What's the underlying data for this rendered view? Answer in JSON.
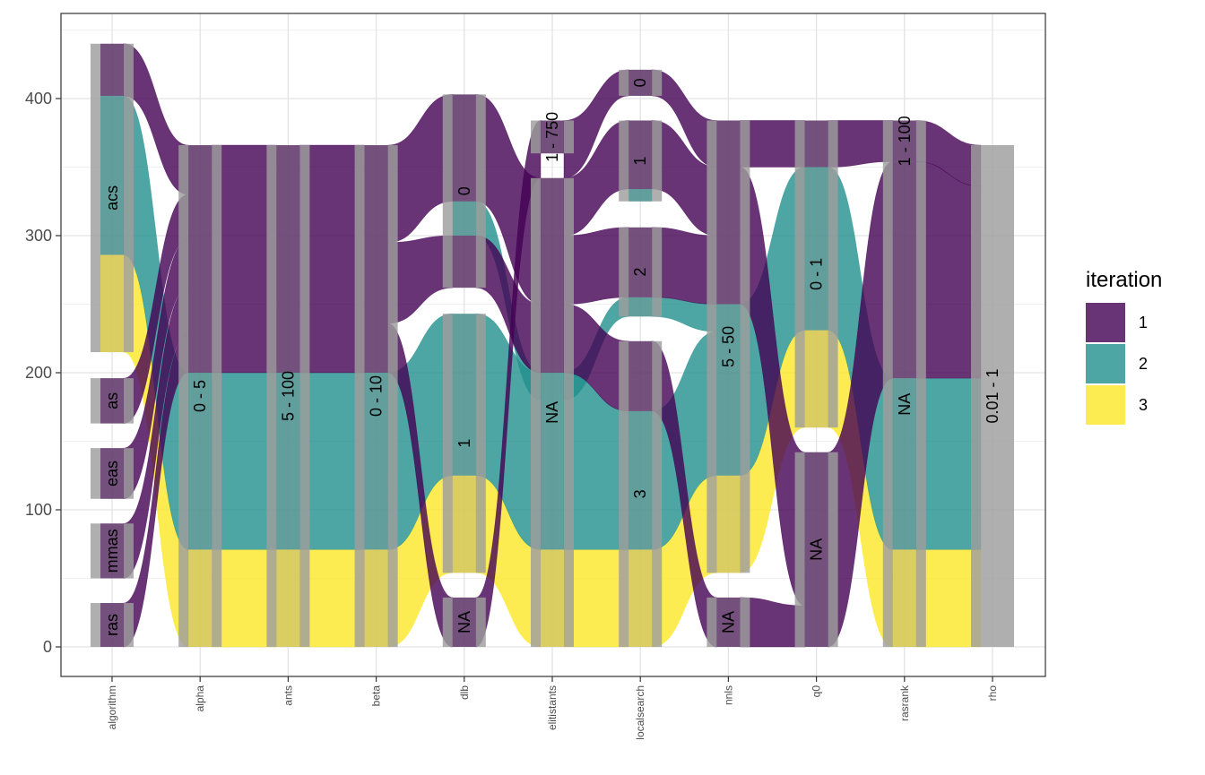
{
  "chart_data": {
    "type": "alluvial",
    "title": "",
    "xlabel": "",
    "ylabel": "",
    "ylim": [
      -22,
      442
    ],
    "y_ticks": [
      0,
      100,
      200,
      300,
      400
    ],
    "grid": true,
    "legend_position": "right",
    "legend_title": "iteration",
    "categories": [
      "algorithm",
      "alpha",
      "ants",
      "beta",
      "dlb",
      "elitistants",
      "localsearch",
      "nnls",
      "q0",
      "rasrank",
      "rho"
    ],
    "series": [
      {
        "name": "1",
        "color": "#440154"
      },
      {
        "name": "2",
        "color": "#21908C"
      },
      {
        "name": "3",
        "color": "#FDE725"
      }
    ],
    "axes": [
      {
        "name": "algorithm",
        "strata": [
          {
            "label": "ras",
            "bottom": 0,
            "top": 32
          },
          {
            "label": "mmas",
            "bottom": 50,
            "top": 90
          },
          {
            "label": "eas",
            "bottom": 108,
            "top": 145
          },
          {
            "label": "as",
            "bottom": 163,
            "top": 196
          },
          {
            "label": "acs",
            "bottom": 215,
            "top": 440
          }
        ]
      },
      {
        "name": "alpha",
        "strata": [
          {
            "label": "0 - 5",
            "bottom": 0,
            "top": 366
          }
        ]
      },
      {
        "name": "ants",
        "strata": [
          {
            "label": "5 - 100",
            "bottom": 0,
            "top": 366
          }
        ]
      },
      {
        "name": "beta",
        "strata": [
          {
            "label": "0 - 10",
            "bottom": 0,
            "top": 366
          }
        ]
      },
      {
        "name": "dlb",
        "strata": [
          {
            "label": "NA",
            "bottom": 0,
            "top": 36
          },
          {
            "label": "1",
            "bottom": 54,
            "top": 243
          },
          {
            "label": "0",
            "bottom": 262,
            "top": 403
          }
        ]
      },
      {
        "name": "elitistants",
        "strata": [
          {
            "label": "NA",
            "bottom": 0,
            "top": 342
          },
          {
            "label": "1 - 750",
            "bottom": 360,
            "top": 384
          }
        ]
      },
      {
        "name": "localsearch",
        "strata": [
          {
            "label": "3",
            "bottom": 0,
            "top": 223
          },
          {
            "label": "2",
            "bottom": 241,
            "top": 306
          },
          {
            "label": "1",
            "bottom": 325,
            "top": 384
          },
          {
            "label": "0",
            "bottom": 402,
            "top": 421
          }
        ]
      },
      {
        "name": "nnls",
        "strata": [
          {
            "label": "NA",
            "bottom": 0,
            "top": 36
          },
          {
            "label": "5 - 50",
            "bottom": 54,
            "top": 384
          }
        ]
      },
      {
        "name": "q0",
        "strata": [
          {
            "label": "NA",
            "bottom": 0,
            "top": 142
          },
          {
            "label": "0 - 1",
            "bottom": 160,
            "top": 384
          }
        ]
      },
      {
        "name": "rasrank",
        "strata": [
          {
            "label": "NA",
            "bottom": 0,
            "top": 354
          },
          {
            "label": "1 - 100",
            "bottom": 354,
            "top": 384
          }
        ]
      },
      {
        "name": "rho",
        "strata": [
          {
            "label": "0.01 - 1",
            "bottom": 0,
            "top": 366
          }
        ]
      }
    ],
    "axis_bands": [
      {
        "axis": "algorithm",
        "segments": [
          {
            "iteration": "3",
            "bottom": 215,
            "top": 286
          },
          {
            "iteration": "2",
            "bottom": 286,
            "top": 402
          },
          {
            "iteration": "1",
            "bottom": 402,
            "top": 440
          },
          {
            "iteration": "1",
            "bottom": 163,
            "top": 196
          },
          {
            "iteration": "1",
            "bottom": 108,
            "top": 145
          },
          {
            "iteration": "1",
            "bottom": 50,
            "top": 90
          },
          {
            "iteration": "1",
            "bottom": 0,
            "top": 32
          }
        ]
      },
      {
        "axis": "alpha",
        "segments": [
          {
            "iteration": "3",
            "bottom": 0,
            "top": 71
          },
          {
            "iteration": "2",
            "bottom": 71,
            "top": 200
          },
          {
            "iteration": "1",
            "bottom": 200,
            "top": 366
          }
        ]
      },
      {
        "axis": "ants",
        "segments": [
          {
            "iteration": "3",
            "bottom": 0,
            "top": 71
          },
          {
            "iteration": "2",
            "bottom": 71,
            "top": 200
          },
          {
            "iteration": "1",
            "bottom": 200,
            "top": 366
          }
        ]
      },
      {
        "axis": "beta",
        "segments": [
          {
            "iteration": "3",
            "bottom": 0,
            "top": 71
          },
          {
            "iteration": "2",
            "bottom": 71,
            "top": 200
          },
          {
            "iteration": "1",
            "bottom": 200,
            "top": 366
          }
        ]
      },
      {
        "axis": "dlb",
        "segments": [
          {
            "iteration": "1",
            "bottom": 0,
            "top": 36
          },
          {
            "iteration": "3",
            "bottom": 54,
            "top": 125
          },
          {
            "iteration": "2",
            "bottom": 125,
            "top": 243
          },
          {
            "iteration": "1",
            "bottom": 262,
            "top": 300
          },
          {
            "iteration": "2",
            "bottom": 300,
            "top": 325
          },
          {
            "iteration": "1",
            "bottom": 325,
            "top": 403
          }
        ]
      },
      {
        "axis": "elitistants",
        "segments": [
          {
            "iteration": "3",
            "bottom": 0,
            "top": 71
          },
          {
            "iteration": "2",
            "bottom": 71,
            "top": 200
          },
          {
            "iteration": "1",
            "bottom": 200,
            "top": 342
          },
          {
            "iteration": "1",
            "bottom": 360,
            "top": 384
          }
        ]
      },
      {
        "axis": "localsearch",
        "segments": [
          {
            "iteration": "3",
            "bottom": 0,
            "top": 71
          },
          {
            "iteration": "2",
            "bottom": 71,
            "top": 172
          },
          {
            "iteration": "1",
            "bottom": 172,
            "top": 223
          },
          {
            "iteration": "2",
            "bottom": 241,
            "top": 255
          },
          {
            "iteration": "1",
            "bottom": 255,
            "top": 306
          },
          {
            "iteration": "2",
            "bottom": 325,
            "top": 334
          },
          {
            "iteration": "1",
            "bottom": 334,
            "top": 384
          },
          {
            "iteration": "1",
            "bottom": 402,
            "top": 421
          }
        ]
      },
      {
        "axis": "nnls",
        "segments": [
          {
            "iteration": "1",
            "bottom": 0,
            "top": 36
          },
          {
            "iteration": "3",
            "bottom": 54,
            "top": 125
          },
          {
            "iteration": "2",
            "bottom": 125,
            "top": 250
          },
          {
            "iteration": "1",
            "bottom": 250,
            "top": 384
          }
        ]
      },
      {
        "axis": "q0",
        "segments": [
          {
            "iteration": "1",
            "bottom": 0,
            "top": 142
          },
          {
            "iteration": "3",
            "bottom": 160,
            "top": 231
          },
          {
            "iteration": "2",
            "bottom": 231,
            "top": 350
          },
          {
            "iteration": "1",
            "bottom": 350,
            "top": 384
          }
        ]
      },
      {
        "axis": "rasrank",
        "segments": [
          {
            "iteration": "3",
            "bottom": 0,
            "top": 71
          },
          {
            "iteration": "2",
            "bottom": 71,
            "top": 196
          },
          {
            "iteration": "1",
            "bottom": 196,
            "top": 354
          },
          {
            "iteration": "1",
            "bottom": 354,
            "top": 384
          }
        ]
      },
      {
        "axis": "rho",
        "segments": []
      }
    ],
    "flows": [
      {
        "from": "algorithm",
        "to": "alpha",
        "iteration": "3",
        "a0": 215,
        "a1": 286,
        "b0": 0,
        "b1": 71
      },
      {
        "from": "algorithm",
        "to": "alpha",
        "iteration": "2",
        "a0": 286,
        "a1": 402,
        "b0": 71,
        "b1": 200
      },
      {
        "from": "algorithm",
        "to": "alpha",
        "iteration": "1",
        "a0": 402,
        "a1": 440,
        "b0": 330,
        "b1": 366
      },
      {
        "from": "algorithm",
        "to": "alpha",
        "iteration": "1",
        "a0": 163,
        "a1": 196,
        "b0": 297,
        "b1": 330
      },
      {
        "from": "algorithm",
        "to": "alpha",
        "iteration": "1",
        "a0": 108,
        "a1": 145,
        "b0": 262,
        "b1": 297
      },
      {
        "from": "algorithm",
        "to": "alpha",
        "iteration": "1",
        "a0": 50,
        "a1": 90,
        "b0": 228,
        "b1": 262
      },
      {
        "from": "algorithm",
        "to": "alpha",
        "iteration": "1",
        "a0": 0,
        "a1": 32,
        "b0": 200,
        "b1": 228
      },
      {
        "from": "alpha",
        "to": "ants",
        "iteration": "3",
        "a0": 0,
        "a1": 71,
        "b0": 0,
        "b1": 71
      },
      {
        "from": "alpha",
        "to": "ants",
        "iteration": "2",
        "a0": 71,
        "a1": 200,
        "b0": 71,
        "b1": 200
      },
      {
        "from": "alpha",
        "to": "ants",
        "iteration": "1",
        "a0": 200,
        "a1": 366,
        "b0": 200,
        "b1": 366
      },
      {
        "from": "ants",
        "to": "beta",
        "iteration": "3",
        "a0": 0,
        "a1": 71,
        "b0": 0,
        "b1": 71
      },
      {
        "from": "ants",
        "to": "beta",
        "iteration": "2",
        "a0": 71,
        "a1": 200,
        "b0": 71,
        "b1": 200
      },
      {
        "from": "ants",
        "to": "beta",
        "iteration": "1",
        "a0": 200,
        "a1": 366,
        "b0": 200,
        "b1": 366
      },
      {
        "from": "beta",
        "to": "dlb",
        "iteration": "3",
        "a0": 0,
        "a1": 71,
        "b0": 54,
        "b1": 125
      },
      {
        "from": "beta",
        "to": "dlb",
        "iteration": "2",
        "a0": 71,
        "a1": 200,
        "b0": 125,
        "b1": 243
      },
      {
        "from": "beta",
        "to": "dlb",
        "iteration": "1",
        "a0": 200,
        "a1": 236,
        "b0": 0,
        "b1": 36
      },
      {
        "from": "beta",
        "to": "dlb",
        "iteration": "1",
        "a0": 236,
        "a1": 295,
        "b0": 262,
        "b1": 300
      },
      {
        "from": "beta",
        "to": "dlb",
        "iteration": "1",
        "a0": 295,
        "a1": 366,
        "b0": 325,
        "b1": 403
      },
      {
        "from": "dlb",
        "to": "elitistants",
        "iteration": "3",
        "a0": 54,
        "a1": 125,
        "b0": 0,
        "b1": 71
      },
      {
        "from": "dlb",
        "to": "elitistants",
        "iteration": "2",
        "a0": 125,
        "a1": 243,
        "b0": 71,
        "b1": 200
      },
      {
        "from": "dlb",
        "to": "elitistants",
        "iteration": "2",
        "a0": 300,
        "a1": 325,
        "b0": 180,
        "b1": 200
      },
      {
        "from": "dlb",
        "to": "elitistants",
        "iteration": "1",
        "a0": 0,
        "a1": 36,
        "b0": 342,
        "b1": 384
      },
      {
        "from": "dlb",
        "to": "elitistants",
        "iteration": "1",
        "a0": 262,
        "a1": 300,
        "b0": 200,
        "b1": 250
      },
      {
        "from": "dlb",
        "to": "elitistants",
        "iteration": "1",
        "a0": 325,
        "a1": 403,
        "b0": 250,
        "b1": 342
      },
      {
        "from": "elitistants",
        "to": "localsearch",
        "iteration": "3",
        "a0": 0,
        "a1": 71,
        "b0": 0,
        "b1": 71
      },
      {
        "from": "elitistants",
        "to": "localsearch",
        "iteration": "2",
        "a0": 71,
        "a1": 200,
        "b0": 71,
        "b1": 172
      },
      {
        "from": "elitistants",
        "to": "localsearch",
        "iteration": "2",
        "a0": 180,
        "a1": 200,
        "b0": 241,
        "b1": 255
      },
      {
        "from": "elitistants",
        "to": "localsearch",
        "iteration": "1",
        "a0": 200,
        "a1": 250,
        "b0": 172,
        "b1": 223
      },
      {
        "from": "elitistants",
        "to": "localsearch",
        "iteration": "1",
        "a0": 250,
        "a1": 300,
        "b0": 255,
        "b1": 306
      },
      {
        "from": "elitistants",
        "to": "localsearch",
        "iteration": "1",
        "a0": 300,
        "a1": 342,
        "b0": 334,
        "b1": 384
      },
      {
        "from": "elitistants",
        "to": "localsearch",
        "iteration": "1",
        "a0": 342,
        "a1": 384,
        "b0": 402,
        "b1": 421
      },
      {
        "from": "localsearch",
        "to": "nnls",
        "iteration": "3",
        "a0": 0,
        "a1": 71,
        "b0": 54,
        "b1": 125
      },
      {
        "from": "localsearch",
        "to": "nnls",
        "iteration": "2",
        "a0": 71,
        "a1": 172,
        "b0": 125,
        "b1": 230
      },
      {
        "from": "localsearch",
        "to": "nnls",
        "iteration": "2",
        "a0": 241,
        "a1": 255,
        "b0": 230,
        "b1": 250
      },
      {
        "from": "localsearch",
        "to": "nnls",
        "iteration": "1",
        "a0": 172,
        "a1": 223,
        "b0": 0,
        "b1": 36
      },
      {
        "from": "localsearch",
        "to": "nnls",
        "iteration": "1",
        "a0": 255,
        "a1": 306,
        "b0": 250,
        "b1": 300
      },
      {
        "from": "localsearch",
        "to": "nnls",
        "iteration": "1",
        "a0": 334,
        "a1": 384,
        "b0": 300,
        "b1": 350
      },
      {
        "from": "localsearch",
        "to": "nnls",
        "iteration": "1",
        "a0": 402,
        "a1": 421,
        "b0": 350,
        "b1": 384
      },
      {
        "from": "nnls",
        "to": "q0",
        "iteration": "3",
        "a0": 54,
        "a1": 125,
        "b0": 160,
        "b1": 231
      },
      {
        "from": "nnls",
        "to": "q0",
        "iteration": "2",
        "a0": 125,
        "a1": 250,
        "b0": 231,
        "b1": 350
      },
      {
        "from": "nnls",
        "to": "q0",
        "iteration": "1",
        "a0": 0,
        "a1": 36,
        "b0": 0,
        "b1": 30
      },
      {
        "from": "nnls",
        "to": "q0",
        "iteration": "1",
        "a0": 250,
        "a1": 350,
        "b0": 30,
        "b1": 142
      },
      {
        "from": "nnls",
        "to": "q0",
        "iteration": "1",
        "a0": 350,
        "a1": 384,
        "b0": 350,
        "b1": 384
      },
      {
        "from": "q0",
        "to": "rasrank",
        "iteration": "3",
        "a0": 160,
        "a1": 231,
        "b0": 0,
        "b1": 71
      },
      {
        "from": "q0",
        "to": "rasrank",
        "iteration": "2",
        "a0": 231,
        "a1": 350,
        "b0": 71,
        "b1": 196
      },
      {
        "from": "q0",
        "to": "rasrank",
        "iteration": "1",
        "a0": 0,
        "a1": 142,
        "b0": 196,
        "b1": 354
      },
      {
        "from": "q0",
        "to": "rasrank",
        "iteration": "1",
        "a0": 350,
        "a1": 384,
        "b0": 354,
        "b1": 384
      },
      {
        "from": "rasrank",
        "to": "rho",
        "iteration": "3",
        "a0": 0,
        "a1": 71,
        "b0": 0,
        "b1": 71
      },
      {
        "from": "rasrank",
        "to": "rho",
        "iteration": "2",
        "a0": 71,
        "a1": 196,
        "b0": 71,
        "b1": 196
      },
      {
        "from": "rasrank",
        "to": "rho",
        "iteration": "1",
        "a0": 196,
        "a1": 354,
        "b0": 196,
        "b1": 336
      },
      {
        "from": "rasrank",
        "to": "rho",
        "iteration": "1",
        "a0": 354,
        "a1": 384,
        "b0": 336,
        "b1": 366
      }
    ]
  }
}
